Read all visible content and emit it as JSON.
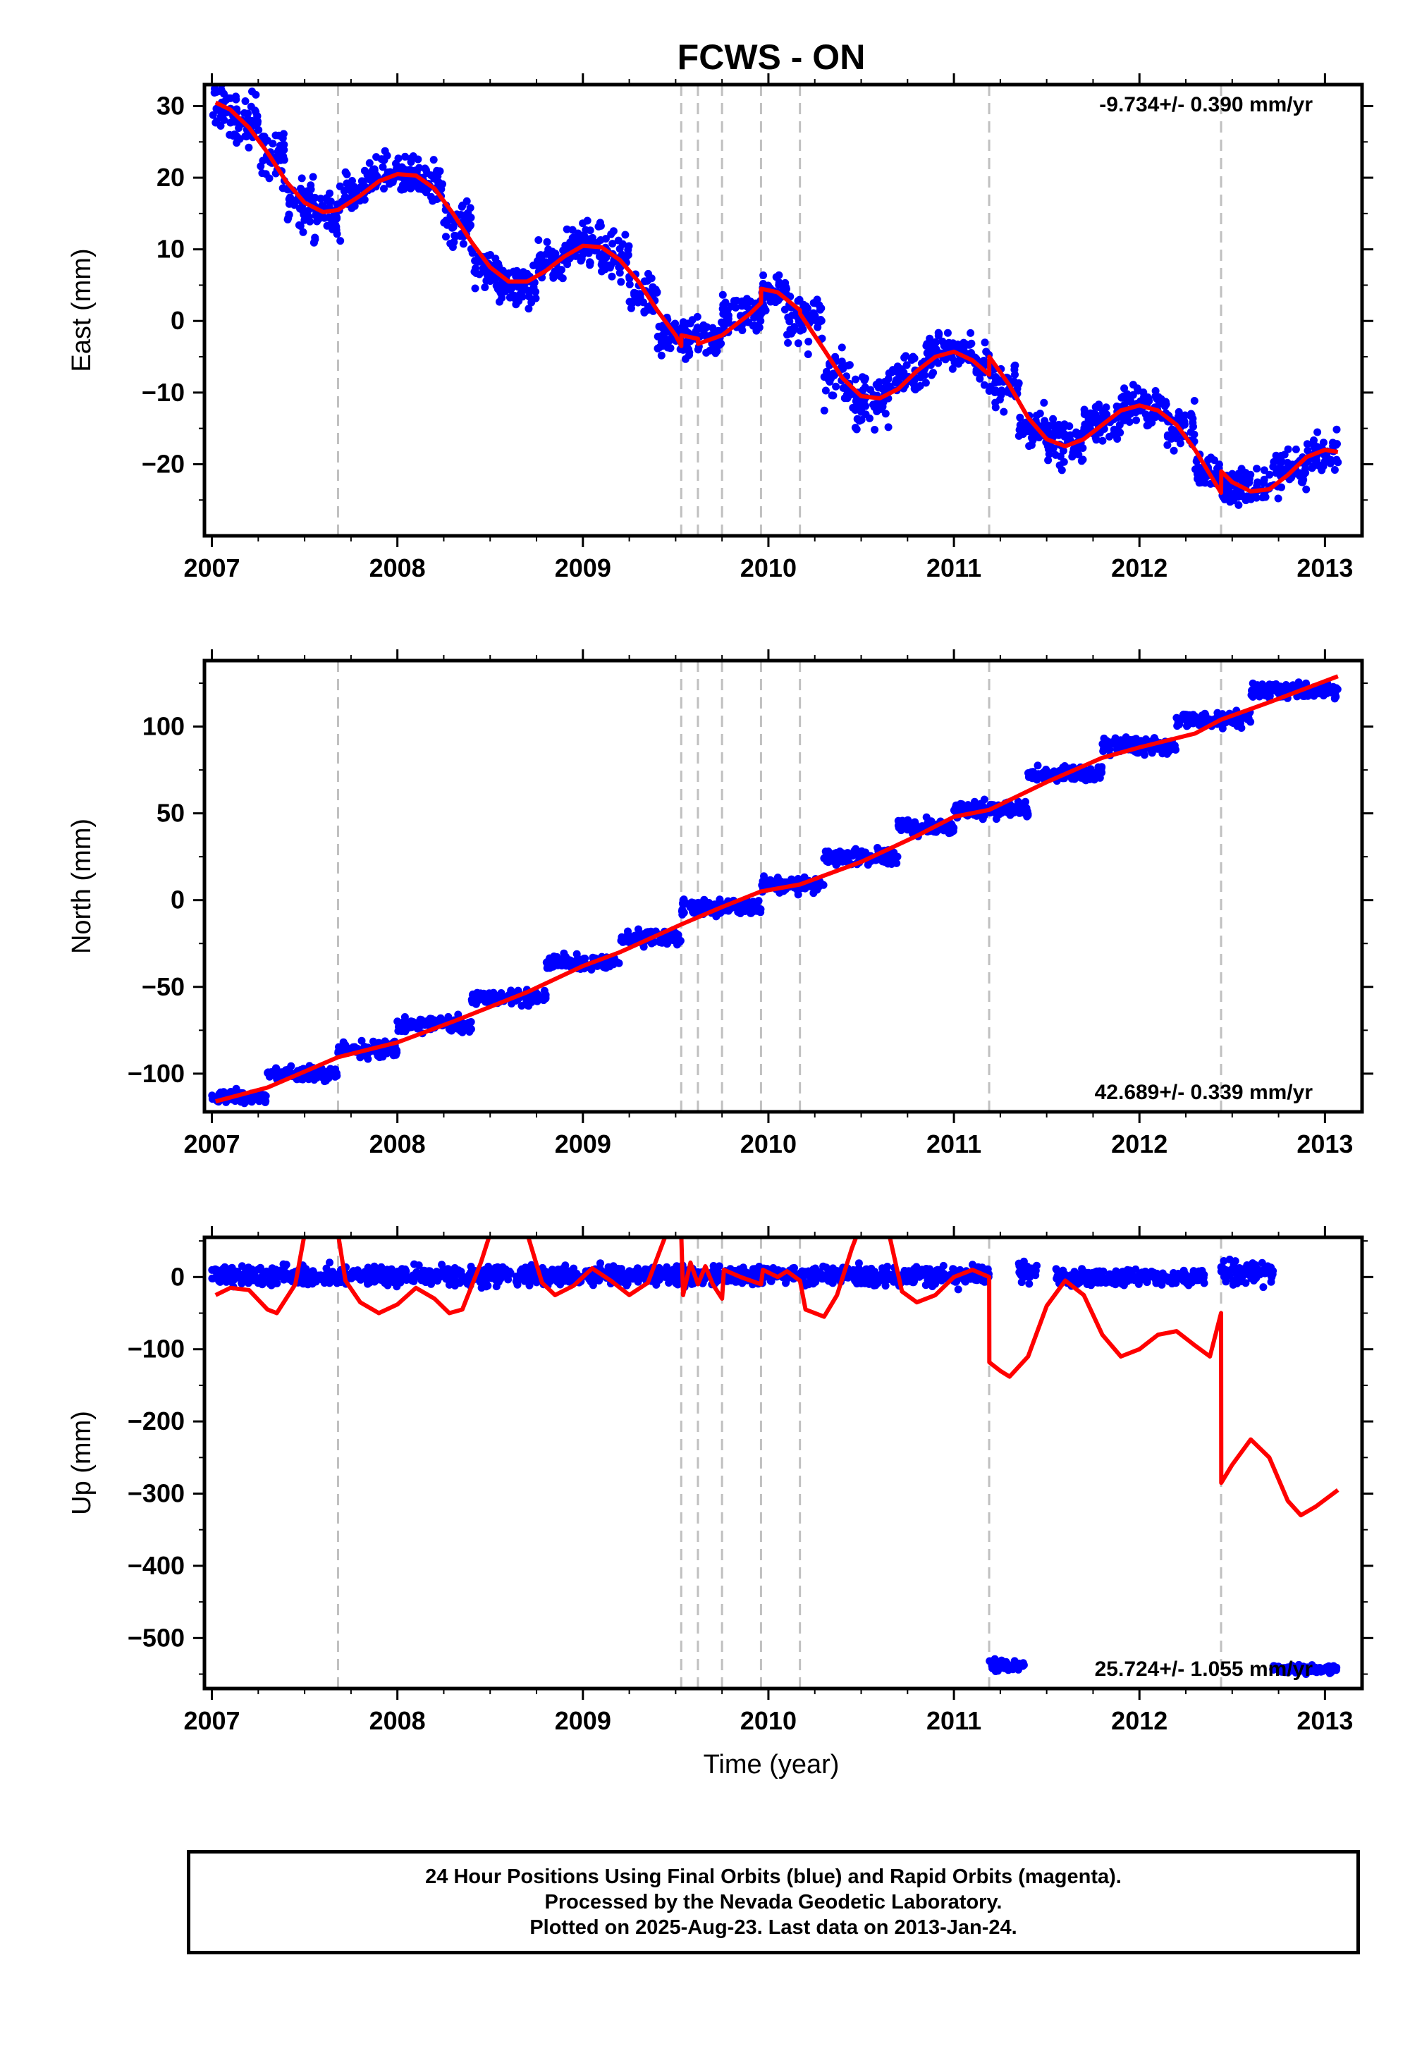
{
  "chart_data": {
    "title": "FCWS - ON",
    "xlabel": "Time (year)",
    "x_ticks": [
      "2007",
      "2008",
      "2009",
      "2010",
      "2011",
      "2012",
      "2013"
    ],
    "xlim": [
      2006.96,
      2013.2
    ],
    "offset_lines": [
      2007.68,
      2009.53,
      2009.62,
      2009.75,
      2009.96,
      2010.17,
      2011.19,
      2012.44
    ],
    "colors": {
      "points": "#0000ff",
      "fit": "#ff0000",
      "offset_lines": "#c0c0c0"
    },
    "panels": [
      {
        "name": "east",
        "type": "scatter",
        "ylabel": "East (mm)",
        "ylim": [
          -30,
          33
        ],
        "y_ticks": [
          -20,
          -10,
          0,
          10,
          20,
          30
        ],
        "rate": "-9.734+/- 0.390 mm/yr",
        "rate_position": "top-right",
        "fit": [
          [
            2007.02,
            30.5
          ],
          [
            2007.1,
            29.5
          ],
          [
            2007.2,
            27.0
          ],
          [
            2007.3,
            23.5
          ],
          [
            2007.4,
            19.5
          ],
          [
            2007.5,
            16.5
          ],
          [
            2007.6,
            15.2
          ],
          [
            2007.68,
            15.5
          ],
          [
            2007.8,
            17.5
          ],
          [
            2007.9,
            19.5
          ],
          [
            2008.0,
            20.5
          ],
          [
            2008.1,
            20.3
          ],
          [
            2008.2,
            18.5
          ],
          [
            2008.3,
            15.0
          ],
          [
            2008.4,
            11.0
          ],
          [
            2008.5,
            7.5
          ],
          [
            2008.6,
            5.5
          ],
          [
            2008.7,
            5.5
          ],
          [
            2008.8,
            7.0
          ],
          [
            2008.9,
            9.0
          ],
          [
            2009.0,
            10.5
          ],
          [
            2009.1,
            10.3
          ],
          [
            2009.2,
            8.5
          ],
          [
            2009.3,
            5.5
          ],
          [
            2009.4,
            1.5
          ],
          [
            2009.5,
            -2.0
          ],
          [
            2009.53,
            -3.5
          ],
          [
            2009.531,
            -2.0
          ],
          [
            2009.62,
            -2.5
          ],
          [
            2009.621,
            -3.2
          ],
          [
            2009.75,
            -2.0
          ],
          [
            2009.9,
            1.0
          ],
          [
            2009.96,
            2.5
          ],
          [
            2009.961,
            4.5
          ],
          [
            2010.05,
            4.0
          ],
          [
            2010.17,
            1.5
          ],
          [
            2010.171,
            1.0
          ],
          [
            2010.3,
            -4.0
          ],
          [
            2010.4,
            -8.0
          ],
          [
            2010.5,
            -10.5
          ],
          [
            2010.6,
            -10.8
          ],
          [
            2010.7,
            -9.5
          ],
          [
            2010.8,
            -7.0
          ],
          [
            2010.9,
            -5.0
          ],
          [
            2011.0,
            -4.3
          ],
          [
            2011.1,
            -5.5
          ],
          [
            2011.19,
            -7.5
          ],
          [
            2011.191,
            -5.0
          ],
          [
            2011.3,
            -9.0
          ],
          [
            2011.4,
            -13.5
          ],
          [
            2011.5,
            -16.5
          ],
          [
            2011.6,
            -17.5
          ],
          [
            2011.7,
            -16.5
          ],
          [
            2011.8,
            -14.5
          ],
          [
            2011.9,
            -12.5
          ],
          [
            2012.0,
            -11.8
          ],
          [
            2012.1,
            -12.5
          ],
          [
            2012.2,
            -14.5
          ],
          [
            2012.3,
            -18.0
          ],
          [
            2012.44,
            -24.0
          ],
          [
            2012.441,
            -21.0
          ],
          [
            2012.5,
            -22.5
          ],
          [
            2012.6,
            -23.8
          ],
          [
            2012.7,
            -23.5
          ],
          [
            2012.8,
            -21.5
          ],
          [
            2012.9,
            -19.0
          ],
          [
            2013.0,
            -18.0
          ],
          [
            2013.07,
            -18.3
          ]
        ],
        "clusters": [
          [
            2007.0,
            2007.08,
            30.0,
            2.5
          ],
          [
            2007.08,
            2007.25,
            28.0,
            2.5
          ],
          [
            2007.25,
            2007.4,
            23.0,
            2.5
          ],
          [
            2007.4,
            2007.55,
            17.0,
            2.5
          ],
          [
            2007.55,
            2007.7,
            15.0,
            2.5
          ],
          [
            2007.7,
            2007.85,
            18.0,
            2.0
          ],
          [
            2007.85,
            2008.1,
            20.5,
            2.0
          ],
          [
            2008.1,
            2008.25,
            19.5,
            2.0
          ],
          [
            2008.25,
            2008.4,
            13.0,
            2.5
          ],
          [
            2008.4,
            2008.55,
            7.0,
            2.0
          ],
          [
            2008.55,
            2008.75,
            5.0,
            2.0
          ],
          [
            2008.75,
            2008.9,
            8.0,
            2.0
          ],
          [
            2008.9,
            2009.1,
            10.5,
            2.0
          ],
          [
            2009.1,
            2009.25,
            9.0,
            2.0
          ],
          [
            2009.25,
            2009.4,
            4.0,
            2.0
          ],
          [
            2009.4,
            2009.53,
            -2.0,
            2.0
          ],
          [
            2009.53,
            2009.75,
            -2.5,
            2.0
          ],
          [
            2009.75,
            2009.96,
            1.0,
            2.0
          ],
          [
            2009.96,
            2010.1,
            4.0,
            2.0
          ],
          [
            2010.1,
            2010.3,
            0.0,
            2.5
          ],
          [
            2010.3,
            2010.45,
            -8.0,
            2.5
          ],
          [
            2010.45,
            2010.65,
            -11.0,
            2.5
          ],
          [
            2010.65,
            2010.85,
            -7.0,
            2.0
          ],
          [
            2010.85,
            2011.1,
            -4.5,
            2.0
          ],
          [
            2011.1,
            2011.19,
            -6.5,
            2.0
          ],
          [
            2011.19,
            2011.35,
            -9.0,
            2.0
          ],
          [
            2011.35,
            2011.5,
            -15.0,
            2.0
          ],
          [
            2011.5,
            2011.7,
            -17.0,
            2.0
          ],
          [
            2011.7,
            2011.9,
            -14.0,
            1.8
          ],
          [
            2011.9,
            2012.15,
            -12.0,
            2.0
          ],
          [
            2012.15,
            2012.3,
            -15.0,
            2.0
          ],
          [
            2012.3,
            2012.44,
            -21.0,
            2.0
          ],
          [
            2012.44,
            2012.7,
            -23.0,
            2.0
          ],
          [
            2012.7,
            2012.9,
            -21.0,
            2.0
          ],
          [
            2012.9,
            2013.07,
            -18.5,
            1.8
          ]
        ]
      },
      {
        "name": "north",
        "type": "scatter",
        "ylabel": "North (mm)",
        "ylim": [
          -122,
          138
        ],
        "y_ticks": [
          -100,
          -50,
          0,
          50,
          100
        ],
        "rate": "42.689+/- 0.339 mm/yr",
        "rate_position": "bottom-right",
        "fit": [
          [
            2007.02,
            -116.0
          ],
          [
            2007.3,
            -108.0
          ],
          [
            2007.68,
            -90.5
          ],
          [
            2008.0,
            -82.0
          ],
          [
            2008.3,
            -70.0
          ],
          [
            2008.7,
            -53.0
          ],
          [
            2009.0,
            -38.0
          ],
          [
            2009.2,
            -30.0
          ],
          [
            2009.53,
            -14.0
          ],
          [
            2009.75,
            -4.0
          ],
          [
            2009.96,
            5.0
          ],
          [
            2010.17,
            9.0
          ],
          [
            2010.5,
            22.0
          ],
          [
            2010.8,
            37.0
          ],
          [
            2011.0,
            48.0
          ],
          [
            2011.19,
            52.0
          ],
          [
            2011.5,
            68.0
          ],
          [
            2011.8,
            82.0
          ],
          [
            2012.0,
            88.0
          ],
          [
            2012.3,
            96.0
          ],
          [
            2012.44,
            104.0
          ],
          [
            2012.7,
            114.0
          ],
          [
            2013.07,
            129.0
          ]
        ],
        "clusters": [
          [
            2007.0,
            2007.3,
            -113.0,
            3.0
          ],
          [
            2007.3,
            2007.68,
            -100.0,
            3.0
          ],
          [
            2007.68,
            2008.0,
            -86.0,
            3.0
          ],
          [
            2008.0,
            2008.4,
            -72.0,
            3.0
          ],
          [
            2008.4,
            2008.8,
            -56.0,
            3.0
          ],
          [
            2008.8,
            2009.2,
            -36.0,
            3.0
          ],
          [
            2009.2,
            2009.53,
            -22.0,
            3.0
          ],
          [
            2009.53,
            2009.96,
            -4.0,
            3.0
          ],
          [
            2009.96,
            2010.3,
            9.0,
            3.0
          ],
          [
            2010.3,
            2010.7,
            25.0,
            3.0
          ],
          [
            2010.7,
            2011.0,
            42.0,
            3.0
          ],
          [
            2011.0,
            2011.4,
            52.0,
            3.0
          ],
          [
            2011.4,
            2011.8,
            73.0,
            3.0
          ],
          [
            2011.8,
            2012.2,
            89.0,
            3.0
          ],
          [
            2012.2,
            2012.6,
            104.0,
            3.0
          ],
          [
            2012.6,
            2013.07,
            121.0,
            3.0
          ]
        ]
      },
      {
        "name": "up",
        "type": "scatter",
        "ylabel": "Up (mm)",
        "ylim": [
          -570,
          55
        ],
        "y_ticks": [
          -500,
          -400,
          -300,
          -200,
          -100,
          0
        ],
        "rate": "25.724+/- 1.055 mm/yr",
        "rate_position": "bottom-right",
        "fit": [
          [
            2007.02,
            -25
          ],
          [
            2007.1,
            -15
          ],
          [
            2007.2,
            -18
          ],
          [
            2007.3,
            -45
          ],
          [
            2007.35,
            -50
          ],
          [
            2007.45,
            -10
          ],
          [
            2007.5,
            60
          ],
          [
            2007.68,
            60
          ],
          [
            2007.72,
            -5
          ],
          [
            2007.8,
            -35
          ],
          [
            2007.9,
            -50
          ],
          [
            2008.0,
            -38
          ],
          [
            2008.1,
            -15
          ],
          [
            2008.2,
            -30
          ],
          [
            2008.28,
            -50
          ],
          [
            2008.35,
            -45
          ],
          [
            2008.45,
            20
          ],
          [
            2008.5,
            60
          ],
          [
            2008.7,
            60
          ],
          [
            2008.78,
            -8
          ],
          [
            2008.85,
            -25
          ],
          [
            2008.95,
            -12
          ],
          [
            2009.05,
            12
          ],
          [
            2009.15,
            -5
          ],
          [
            2009.25,
            -25
          ],
          [
            2009.35,
            -8
          ],
          [
            2009.42,
            40
          ],
          [
            2009.45,
            60
          ],
          [
            2009.53,
            60
          ],
          [
            2009.54,
            -25
          ],
          [
            2009.58,
            20
          ],
          [
            2009.62,
            -10
          ],
          [
            2009.66,
            15
          ],
          [
            2009.7,
            -10
          ],
          [
            2009.75,
            -30
          ],
          [
            2009.76,
            10
          ],
          [
            2009.85,
            0
          ],
          [
            2009.96,
            -10
          ],
          [
            2009.97,
            10
          ],
          [
            2010.05,
            0
          ],
          [
            2010.1,
            8
          ],
          [
            2010.17,
            -5
          ],
          [
            2010.2,
            -45
          ],
          [
            2010.3,
            -55
          ],
          [
            2010.37,
            -25
          ],
          [
            2010.45,
            40
          ],
          [
            2010.48,
            60
          ],
          [
            2010.65,
            60
          ],
          [
            2010.72,
            -20
          ],
          [
            2010.8,
            -35
          ],
          [
            2010.9,
            -25
          ],
          [
            2011.0,
            0
          ],
          [
            2011.1,
            10
          ],
          [
            2011.19,
            0
          ],
          [
            2011.191,
            -118
          ],
          [
            2011.25,
            -130
          ],
          [
            2011.3,
            -138
          ],
          [
            2011.4,
            -110
          ],
          [
            2011.5,
            -40
          ],
          [
            2011.6,
            -5
          ],
          [
            2011.7,
            -25
          ],
          [
            2011.8,
            -80
          ],
          [
            2011.9,
            -110
          ],
          [
            2012.0,
            -100
          ],
          [
            2012.1,
            -80
          ],
          [
            2012.2,
            -75
          ],
          [
            2012.3,
            -95
          ],
          [
            2012.38,
            -110
          ],
          [
            2012.44,
            -50
          ],
          [
            2012.441,
            -285
          ],
          [
            2012.5,
            -260
          ],
          [
            2012.6,
            -225
          ],
          [
            2012.7,
            -250
          ],
          [
            2012.8,
            -310
          ],
          [
            2012.87,
            -330
          ],
          [
            2012.95,
            -318
          ],
          [
            2013.07,
            -295
          ]
        ],
        "clusters": [
          [
            2007.0,
            2011.19,
            2.0,
            9.0
          ],
          [
            2011.35,
            2011.45,
            5.0,
            10.0
          ],
          [
            2011.55,
            2012.35,
            0.0,
            8.0
          ],
          [
            2012.44,
            2012.72,
            5.0,
            10.0
          ],
          [
            2011.19,
            2011.38,
            -538.0,
            6.0
          ],
          [
            2012.72,
            2013.07,
            -543.0,
            4.0
          ]
        ]
      }
    ]
  },
  "footer": {
    "line1": "24 Hour Positions Using Final Orbits (blue) and Rapid Orbits (magenta).",
    "line2": "Processed by the Nevada Geodetic Laboratory.",
    "line3": "Plotted on 2025-Aug-23. Last data on 2013-Jan-24."
  }
}
